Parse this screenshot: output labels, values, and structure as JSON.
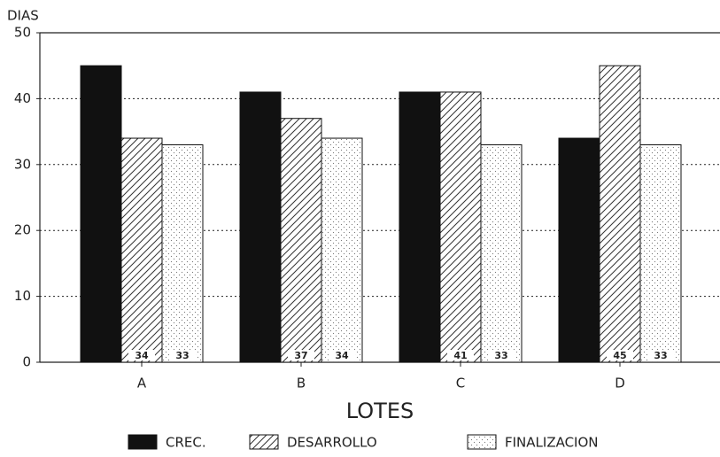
{
  "chart_data": {
    "type": "bar",
    "y_label": "DIAS",
    "x_label": "LOTES",
    "categories": [
      "A",
      "B",
      "C",
      "D"
    ],
    "series": [
      {
        "name": "CREC.",
        "color": "#111111",
        "values": [
          45,
          41,
          41,
          34
        ]
      },
      {
        "name": "DESARROLLO",
        "color": "hatch",
        "values": [
          34,
          37,
          41,
          45
        ]
      },
      {
        "name": "FINALIZACION",
        "color": "dots",
        "values": [
          33,
          34,
          33,
          33
        ]
      }
    ],
    "ylim": [
      0,
      50
    ],
    "yticks": [
      0,
      10,
      20,
      30,
      40,
      50
    ],
    "grid": true
  }
}
